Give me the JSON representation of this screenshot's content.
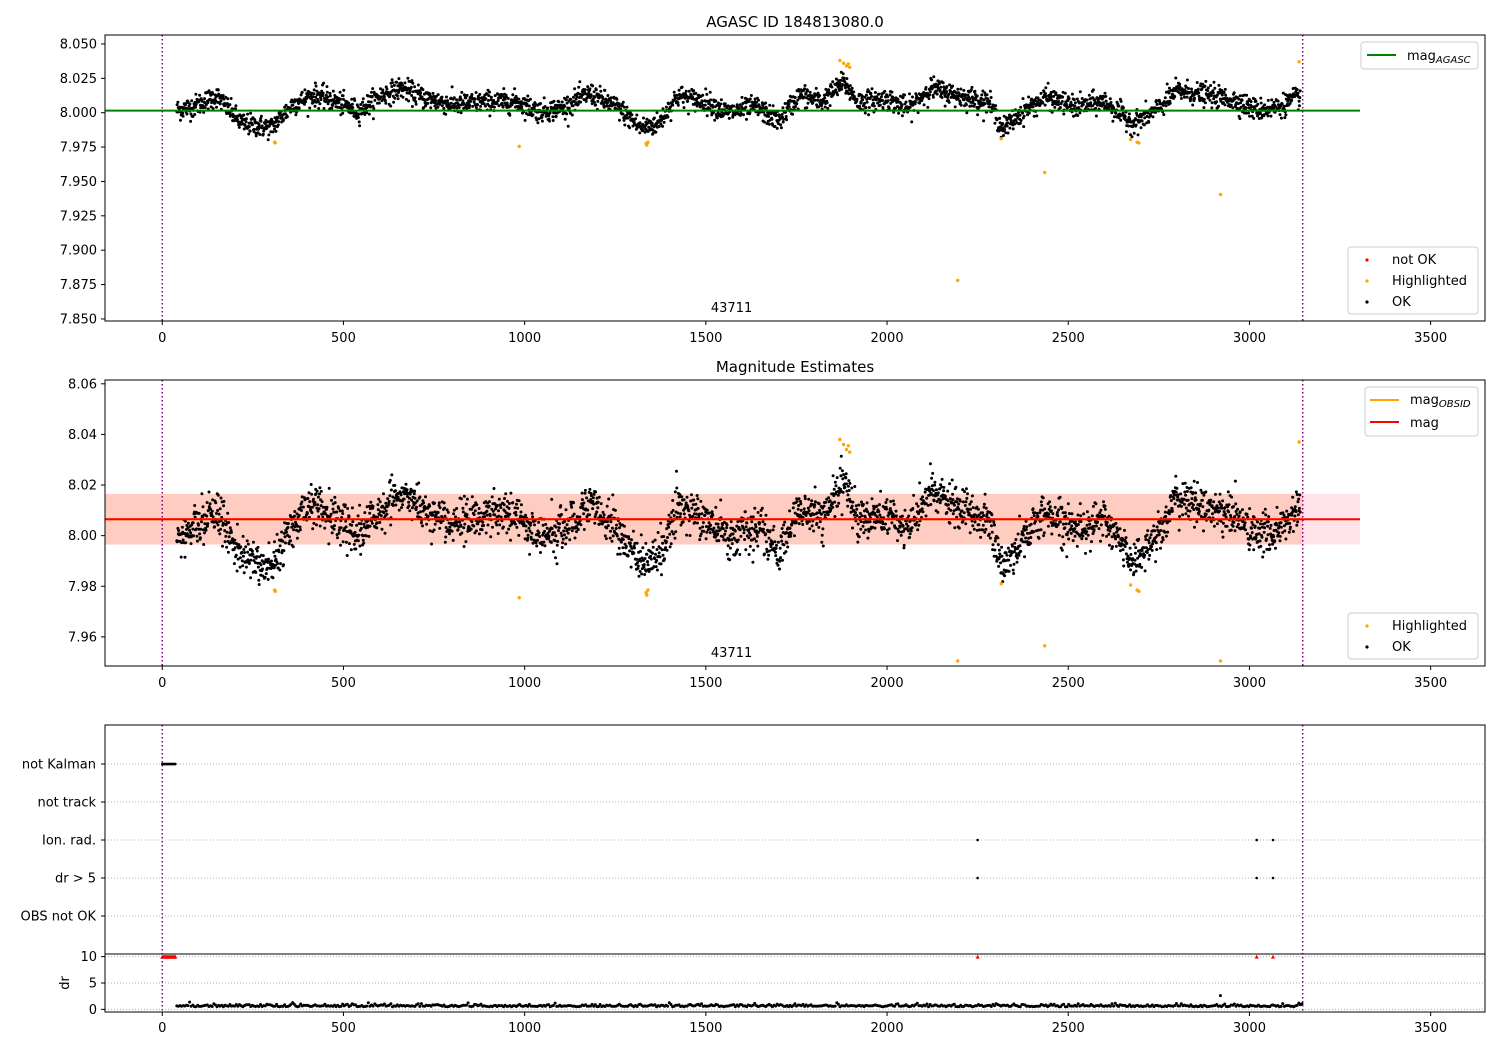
{
  "chart_data": [
    {
      "type": "scatter",
      "title": "AGASC ID 184813080.0",
      "xlim": [
        -158,
        3650
      ],
      "ylim": [
        7.8485,
        8.0565
      ],
      "xticks": [
        0,
        500,
        1000,
        1500,
        2000,
        2500,
        3000,
        3500
      ],
      "xtick_labels": [
        "0",
        "500",
        "1000",
        "1500",
        "2000",
        "2500",
        "3000",
        "3500"
      ],
      "yticks": [
        7.85,
        7.875,
        7.9,
        7.925,
        7.95,
        7.975,
        8.0,
        8.025,
        8.05
      ],
      "ytick_labels": [
        "7.850",
        "7.875",
        "7.900",
        "7.925",
        "7.950",
        "7.975",
        "8.000",
        "8.025",
        "8.050"
      ],
      "obsid_label": "43711",
      "obsid_x": 1571,
      "vlines": [
        0,
        3147
      ],
      "line_series": [
        {
          "name": "mag_AGASC",
          "legend_main": "mag",
          "legend_sub": "AGASC",
          "value": 8.0015,
          "x": [
            -158,
            3305
          ],
          "color": "#008000"
        }
      ],
      "scatter_legend": [
        {
          "name": "not OK",
          "color": "#ff0000"
        },
        {
          "name": "Highlighted",
          "color": "#ffa500"
        },
        {
          "name": "OK",
          "color": "#000000"
        }
      ],
      "highlighted_points": {
        "x": [
          310,
          312,
          985,
          1335,
          1337,
          1340,
          1870,
          1880,
          1888,
          1893,
          1897,
          2195,
          2315,
          2435,
          2672,
          2690,
          2695,
          2920,
          3137
        ],
        "y": [
          7.9785,
          7.978,
          7.9755,
          7.9775,
          7.9765,
          7.9785,
          8.038,
          8.036,
          8.034,
          8.0355,
          8.033,
          7.878,
          7.981,
          7.9565,
          7.9805,
          7.9785,
          7.978,
          7.9405,
          8.037
        ]
      },
      "ok_segments": [
        [
          40,
          8.002
        ],
        [
          80,
          8.004
        ],
        [
          150,
          8.012
        ],
        [
          220,
          7.992
        ],
        [
          300,
          7.989
        ],
        [
          360,
          8.006
        ],
        [
          420,
          8.013
        ],
        [
          480,
          8.008
        ],
        [
          540,
          8.001
        ],
        [
          600,
          8.012
        ],
        [
          660,
          8.018
        ],
        [
          720,
          8.011
        ],
        [
          800,
          8.006
        ],
        [
          900,
          8.008
        ],
        [
          980,
          8.008
        ],
        [
          1040,
          8.001
        ],
        [
          1100,
          8.003
        ],
        [
          1180,
          8.014
        ],
        [
          1260,
          8.003
        ],
        [
          1320,
          7.989
        ],
        [
          1370,
          7.992
        ],
        [
          1420,
          8.012
        ],
        [
          1500,
          8.008
        ],
        [
          1560,
          8.0
        ],
        [
          1640,
          8.004
        ],
        [
          1700,
          7.994
        ],
        [
          1760,
          8.013
        ],
        [
          1820,
          8.008
        ],
        [
          1880,
          8.022
        ],
        [
          1920,
          8.008
        ],
        [
          2000,
          8.01
        ],
        [
          2060,
          8.003
        ],
        [
          2120,
          8.018
        ],
        [
          2200,
          8.012
        ],
        [
          2280,
          8.008
        ],
        [
          2320,
          7.988
        ],
        [
          2380,
          8.002
        ],
        [
          2440,
          8.011
        ],
        [
          2520,
          8.004
        ],
        [
          2600,
          8.008
        ],
        [
          2680,
          7.992
        ],
        [
          2740,
          8.001
        ],
        [
          2800,
          8.016
        ],
        [
          2880,
          8.013
        ],
        [
          2960,
          8.009
        ],
        [
          3020,
          8.002
        ],
        [
          3080,
          8.004
        ],
        [
          3140,
          8.012
        ]
      ],
      "ok_scatter": 0.0065,
      "ok_count": 3000
    },
    {
      "type": "scatter",
      "title": "Magnitude Estimates",
      "xlim": [
        -158,
        3650
      ],
      "ylim": [
        7.9485,
        8.0615
      ],
      "xticks": [
        0,
        500,
        1000,
        1500,
        2000,
        2500,
        3000,
        3500
      ],
      "xtick_labels": [
        "0",
        "500",
        "1000",
        "1500",
        "2000",
        "2500",
        "3000",
        "3500"
      ],
      "yticks": [
        7.96,
        7.98,
        8.0,
        8.02,
        8.04,
        8.06
      ],
      "ytick_labels": [
        "7.96",
        "7.98",
        "8.00",
        "8.02",
        "8.04",
        "8.06"
      ],
      "obsid_label": "43711",
      "obsid_x": 1571,
      "vlines": [
        0,
        3147
      ],
      "band": {
        "y0": 7.9965,
        "y1": 8.0165,
        "x0": -158,
        "x1": 3305,
        "color_outer": "#ffc0cb",
        "color_inner": "#ffa07a"
      },
      "line_series": [
        {
          "name": "mag_OBSID",
          "legend_main": "mag",
          "legend_sub": "OBSID",
          "value": 8.0065,
          "x": [
            -158,
            3147
          ],
          "color": "#ffa500"
        },
        {
          "name": "mag",
          "legend_main": "mag",
          "legend_sub": "",
          "value": 8.0065,
          "x": [
            -158,
            3305
          ],
          "color": "#ff0000"
        }
      ],
      "scatter_legend": [
        {
          "name": "Highlighted",
          "color": "#ffa500"
        },
        {
          "name": "OK",
          "color": "#000000"
        }
      ],
      "highlighted_points": {
        "x": [
          310,
          312,
          985,
          1335,
          1337,
          1340,
          1870,
          1880,
          1888,
          1893,
          1897,
          2195,
          2315,
          2435,
          2672,
          2690,
          2695,
          2920,
          3137
        ],
        "y": [
          7.9785,
          7.978,
          7.9755,
          7.9775,
          7.9765,
          7.9785,
          8.038,
          8.036,
          8.034,
          8.0355,
          8.033,
          7.9505,
          7.981,
          7.9565,
          7.9805,
          7.9785,
          7.978,
          7.9505,
          8.037
        ]
      },
      "ok_segments": [
        [
          40,
          7.999
        ],
        [
          80,
          8.002
        ],
        [
          150,
          8.01
        ],
        [
          220,
          7.992
        ],
        [
          300,
          7.988
        ],
        [
          360,
          8.004
        ],
        [
          420,
          8.013
        ],
        [
          480,
          8.007
        ],
        [
          540,
          8.0
        ],
        [
          600,
          8.01
        ],
        [
          660,
          8.016
        ],
        [
          720,
          8.01
        ],
        [
          800,
          8.005
        ],
        [
          900,
          8.008
        ],
        [
          980,
          8.008
        ],
        [
          1040,
          8.0
        ],
        [
          1100,
          8.002
        ],
        [
          1180,
          8.013
        ],
        [
          1260,
          8.002
        ],
        [
          1320,
          7.989
        ],
        [
          1370,
          7.991
        ],
        [
          1420,
          8.011
        ],
        [
          1500,
          8.007
        ],
        [
          1560,
          7.999
        ],
        [
          1640,
          8.003
        ],
        [
          1700,
          7.993
        ],
        [
          1760,
          8.011
        ],
        [
          1820,
          8.006
        ],
        [
          1880,
          8.021
        ],
        [
          1920,
          8.007
        ],
        [
          2000,
          8.008
        ],
        [
          2060,
          8.002
        ],
        [
          2120,
          8.018
        ],
        [
          2200,
          8.01
        ],
        [
          2280,
          8.006
        ],
        [
          2320,
          7.987
        ],
        [
          2380,
          8.0
        ],
        [
          2440,
          8.009
        ],
        [
          2520,
          8.003
        ],
        [
          2600,
          8.006
        ],
        [
          2680,
          7.99
        ],
        [
          2740,
          7.999
        ],
        [
          2800,
          8.015
        ],
        [
          2880,
          8.011
        ],
        [
          2960,
          8.008
        ],
        [
          3020,
          8.0
        ],
        [
          3080,
          8.002
        ],
        [
          3140,
          8.011
        ]
      ],
      "ok_scatter": 0.0065,
      "ok_count": 3000
    },
    {
      "type": "scatter",
      "title": "",
      "xlim": [
        -158,
        3650
      ],
      "xticks": [
        0,
        500,
        1000,
        1500,
        2000,
        2500,
        3000,
        3500
      ],
      "xtick_labels": [
        "0",
        "500",
        "1000",
        "1500",
        "2000",
        "2500",
        "3000",
        "3500"
      ],
      "vlines": [
        0,
        3147
      ],
      "flags": {
        "rows": [
          "not Kalman",
          "not track",
          "Ion. rad.",
          "dr > 5",
          "OBS not OK"
        ],
        "points": [
          {
            "row": "not Kalman",
            "x": [
              0,
              2,
              4,
              6,
              8,
              10,
              12,
              14,
              16,
              18,
              20,
              22,
              24,
              26,
              28,
              30,
              32,
              34,
              36
            ]
          },
          {
            "row": "Ion. rad.",
            "x": [
              2250,
              3020,
              3065
            ]
          },
          {
            "row": "dr > 5",
            "x": [
              2250,
              3020,
              3065
            ]
          }
        ]
      },
      "dr": {
        "ylabel": "dr",
        "ylim": [
          -0.5,
          10.5
        ],
        "yticks": [
          0,
          5,
          10
        ],
        "ytick_labels": [
          "0",
          "5",
          "10"
        ],
        "clipped_x": [
          0,
          3,
          6,
          9,
          12,
          15,
          18,
          21,
          24,
          27,
          30,
          33,
          36,
          2250,
          3020,
          3065
        ],
        "clipped_value": 10,
        "typical_value": 0.6,
        "outliers": {
          "x": [
            2920
          ],
          "y": [
            2.6
          ]
        }
      }
    }
  ]
}
